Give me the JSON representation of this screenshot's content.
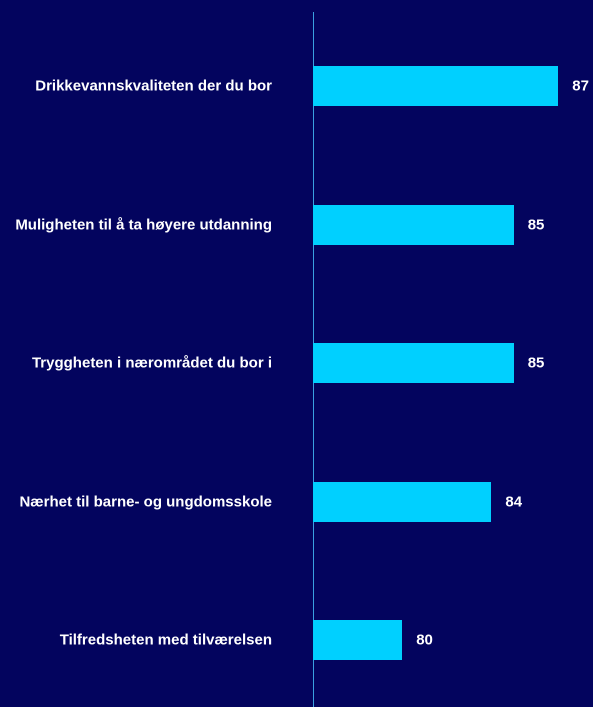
{
  "chart_data": {
    "type": "bar",
    "orientation": "horizontal",
    "categories": [
      "Drikkevannskvaliteten der du bor",
      "Muligheten til å ta høyere utdanning",
      "Tryggheten i nærområdet du bor i",
      "Nærhet til barne- og ungdomsskole",
      "Tilfredsheten med tilværelsen"
    ],
    "values": [
      87,
      85,
      85,
      84,
      80
    ],
    "color": "#00d0ff",
    "xlim": [
      76,
      88
    ]
  }
}
